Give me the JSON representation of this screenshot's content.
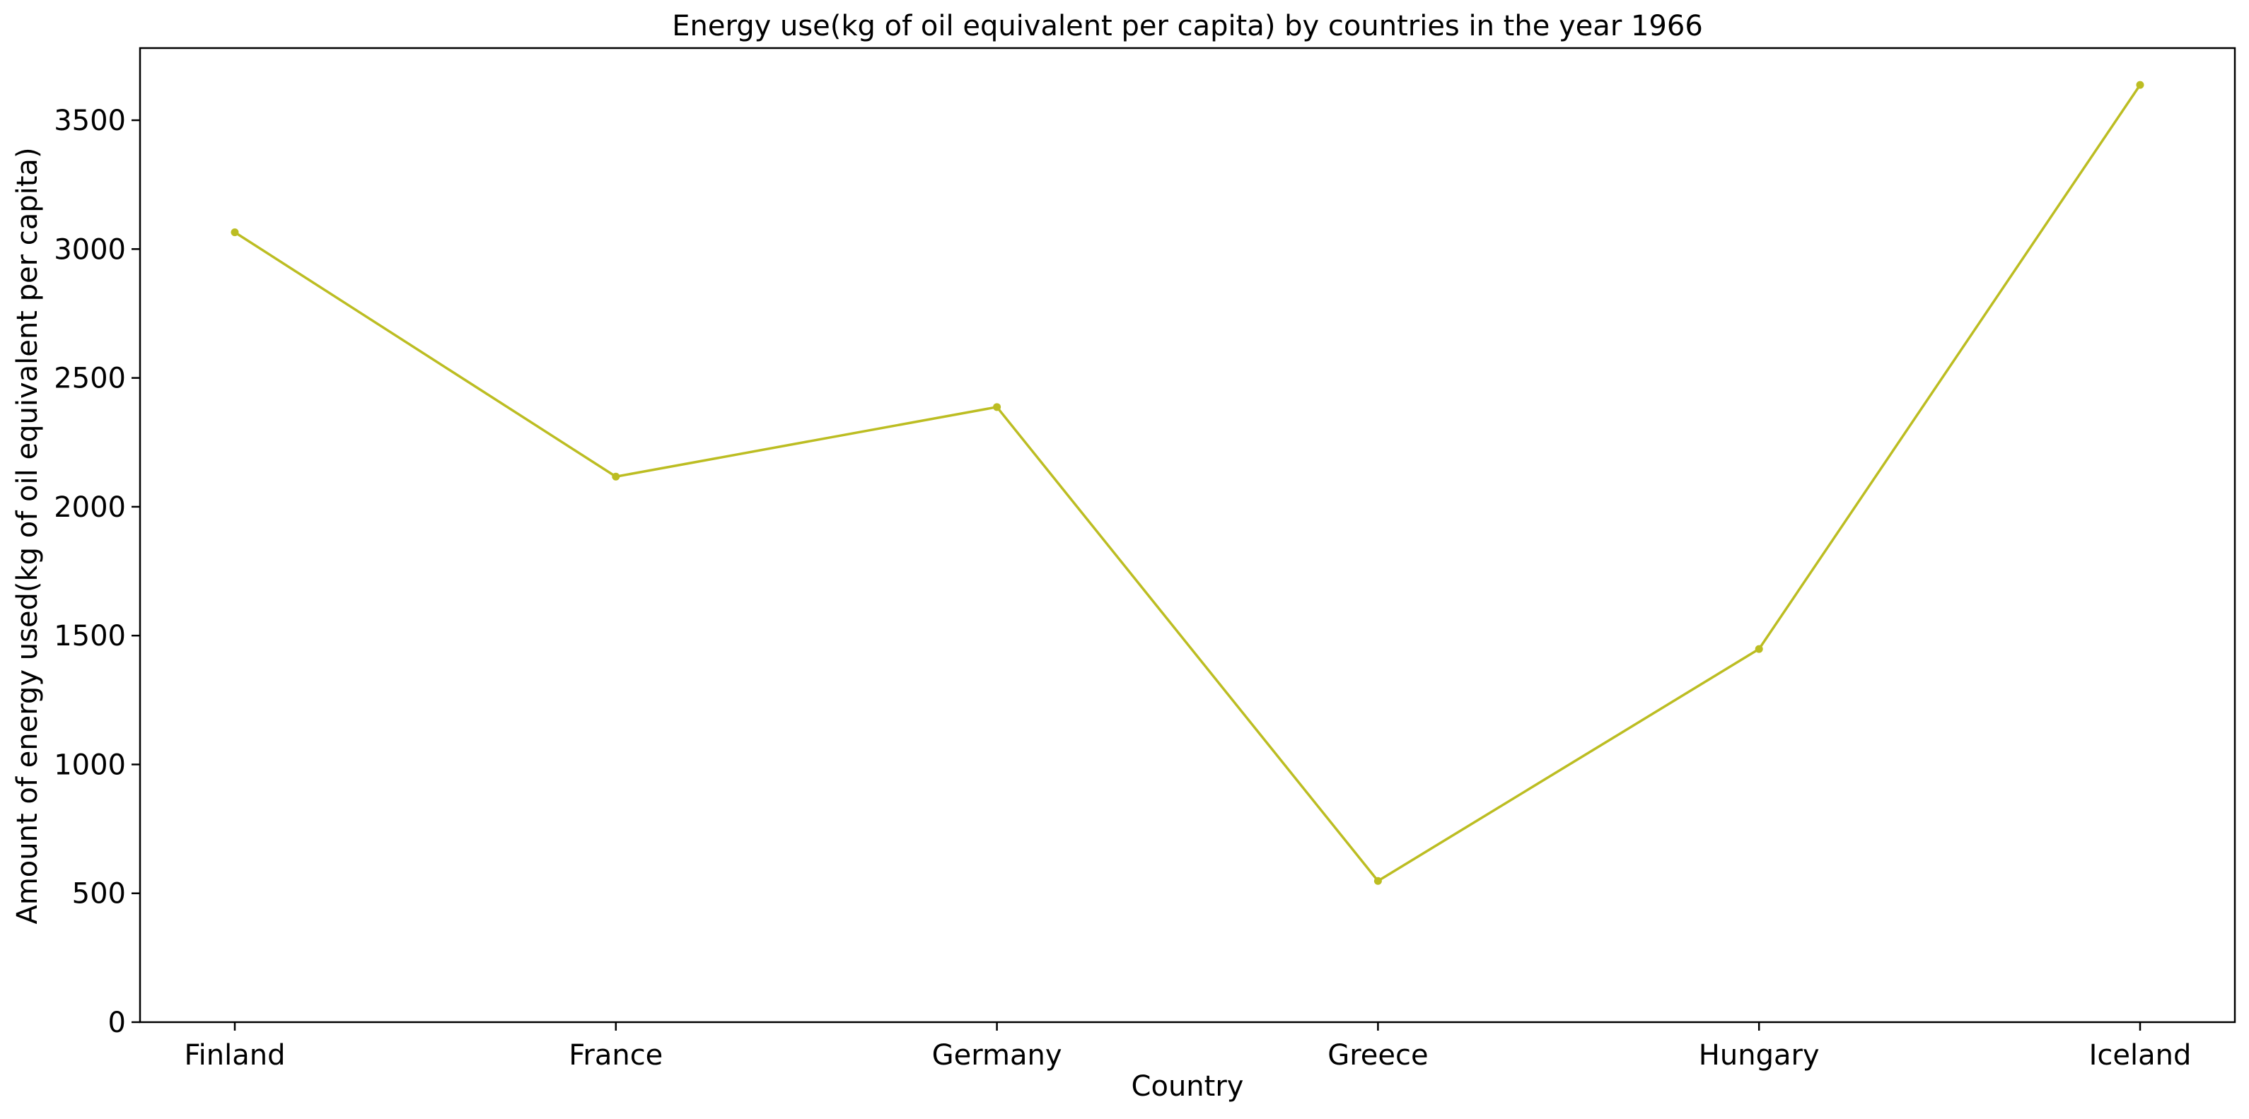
{
  "chart_data": {
    "type": "line",
    "title": "Energy use(kg of oil equivalent per capita) by countries in the year 1966",
    "xlabel": "Country",
    "ylabel": "Amount of energy used(kg of oil equivalent per capita)",
    "categories": [
      "Finland",
      "France",
      "Germany",
      "Greece",
      "Hungary",
      "Iceland"
    ],
    "series": [
      {
        "values": [
          3065,
          2117,
          2387,
          548,
          1448,
          3637
        ]
      }
    ],
    "ylim": [
      0,
      3780
    ],
    "yticks": [
      0,
      500,
      1000,
      1500,
      2000,
      2500,
      3000,
      3500
    ],
    "grid": false,
    "line_color": "#bcbd22"
  }
}
